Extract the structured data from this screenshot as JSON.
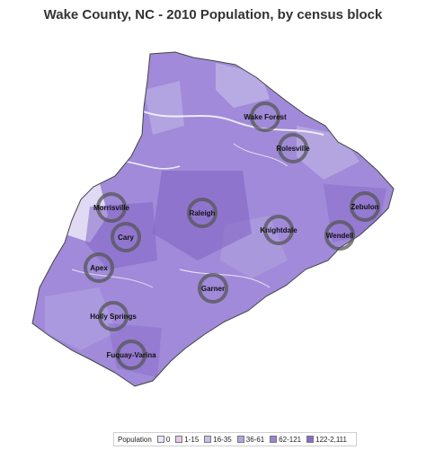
{
  "title": "Wake County, NC - 2010 Population, by census block",
  "legend": {
    "title": "Population",
    "items": [
      {
        "label": "0",
        "color": "#ece8f8"
      },
      {
        "label": "1-15",
        "color": "#e8c8e4"
      },
      {
        "label": "16-35",
        "color": "#c8c0ea"
      },
      {
        "label": "36-61",
        "color": "#b3a5e2"
      },
      {
        "label": "62-121",
        "color": "#9b84d6"
      },
      {
        "label": "122-2,111",
        "color": "#8a6bc9"
      }
    ]
  },
  "colors": {
    "base": "#a08ad9",
    "light": "#ece8f8",
    "dark": "#8466c6",
    "ring": "#555555",
    "border": "#444444"
  },
  "cities": [
    {
      "name": "Wake Forest",
      "key": "wake-forest"
    },
    {
      "name": "Rolesville",
      "key": "rolesville"
    },
    {
      "name": "Morrisville",
      "key": "morrisville"
    },
    {
      "name": "Raleigh",
      "key": "raleigh"
    },
    {
      "name": "Zebulon",
      "key": "zebulon"
    },
    {
      "name": "Knightdale",
      "key": "knightdale"
    },
    {
      "name": "Wendell",
      "key": "wendell"
    },
    {
      "name": "Cary",
      "key": "cary"
    },
    {
      "name": "Apex",
      "key": "apex"
    },
    {
      "name": "Garner",
      "key": "garner"
    },
    {
      "name": "Holly Springs",
      "key": "holly-springs"
    },
    {
      "name": "Fuquay-Varina",
      "key": "fuquay-varina"
    }
  ]
}
